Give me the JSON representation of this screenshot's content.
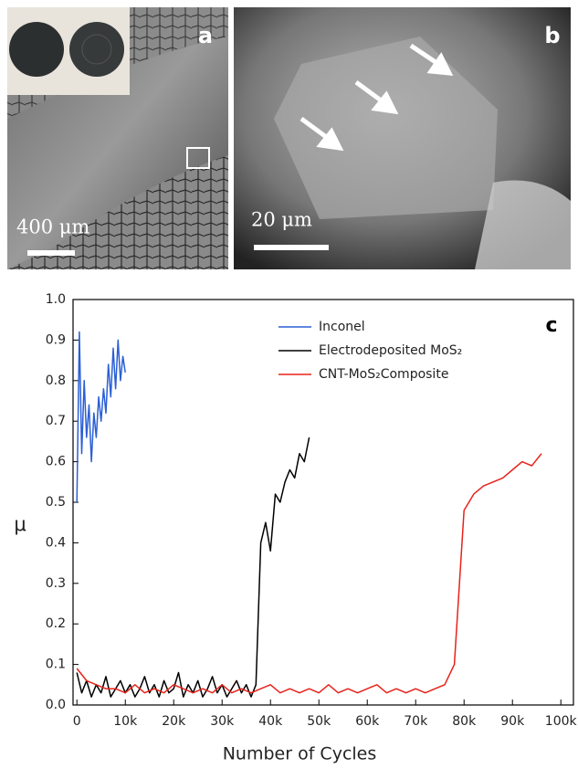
{
  "panels": [
    {
      "label": "a",
      "scale_bar": "400 μm"
    },
    {
      "label": "b",
      "scale_bar": "20 μm"
    }
  ],
  "chart_data": {
    "type": "line",
    "annotation": "c",
    "x_label": "Number of Cycles",
    "y_label": "μ",
    "xlim": [
      -800,
      102600
    ],
    "ylim": [
      0,
      1
    ],
    "xticks": [
      0,
      {
        "value": 10000,
        "label": "10k"
      },
      {
        "value": 20000,
        "label": "20k"
      },
      {
        "value": 30000,
        "label": "30k"
      },
      {
        "value": 40000,
        "label": "40k"
      },
      {
        "value": 50000,
        "label": "50k"
      },
      {
        "value": 60000,
        "label": "60k"
      },
      {
        "value": 70000,
        "label": "70k"
      },
      {
        "value": 80000,
        "label": "80k"
      },
      {
        "value": 90000,
        "label": "90k"
      },
      {
        "value": 100000,
        "label": "100k"
      }
    ],
    "yticks": [
      {
        "value": 0,
        "label": "0.0"
      },
      0.1,
      0.2,
      0.3,
      0.4,
      0.5,
      0.6,
      0.7,
      0.8,
      0.9,
      {
        "value": 1,
        "label": "1.0"
      }
    ],
    "legend": "upper right",
    "series": [
      {
        "name": "Inconel",
        "color": "#2b5fd4",
        "x": [
          0,
          500,
          1000,
          1500,
          2000,
          2500,
          3000,
          3500,
          4000,
          4500,
          5000,
          5500,
          6000,
          6500,
          7000,
          7500,
          8000,
          8500,
          9000,
          9500,
          10000
        ],
        "values": [
          0.5,
          0.92,
          0.62,
          0.8,
          0.66,
          0.74,
          0.6,
          0.72,
          0.66,
          0.76,
          0.7,
          0.78,
          0.72,
          0.84,
          0.76,
          0.88,
          0.78,
          0.9,
          0.8,
          0.86,
          0.82
        ]
      },
      {
        "name": "Electrodeposited MoS₂",
        "color": "#000000",
        "x": [
          0,
          1000,
          2000,
          3000,
          4000,
          5000,
          6000,
          7000,
          8000,
          9000,
          10000,
          11000,
          12000,
          13000,
          14000,
          15000,
          16000,
          17000,
          18000,
          19000,
          20000,
          21000,
          22000,
          23000,
          24000,
          25000,
          26000,
          27000,
          28000,
          29000,
          30000,
          31000,
          32000,
          33000,
          34000,
          35000,
          36000,
          37000,
          38000,
          39000,
          40000,
          41000,
          42000,
          43000,
          44000,
          45000,
          46000,
          47000,
          48000
        ],
        "values": [
          0.08,
          0.03,
          0.06,
          0.02,
          0.05,
          0.03,
          0.07,
          0.02,
          0.04,
          0.06,
          0.03,
          0.05,
          0.02,
          0.04,
          0.07,
          0.03,
          0.05,
          0.02,
          0.06,
          0.03,
          0.04,
          0.08,
          0.02,
          0.05,
          0.03,
          0.06,
          0.02,
          0.04,
          0.07,
          0.03,
          0.05,
          0.02,
          0.04,
          0.06,
          0.03,
          0.05,
          0.02,
          0.05,
          0.4,
          0.45,
          0.38,
          0.52,
          0.5,
          0.55,
          0.58,
          0.56,
          0.62,
          0.6,
          0.66
        ]
      },
      {
        "name": "CNT-MoS₂Composite",
        "color": "#e8221a",
        "x": [
          0,
          2000,
          4000,
          6000,
          8000,
          10000,
          12000,
          14000,
          16000,
          18000,
          20000,
          22000,
          24000,
          26000,
          28000,
          30000,
          32000,
          34000,
          36000,
          38000,
          40000,
          42000,
          44000,
          46000,
          48000,
          50000,
          52000,
          54000,
          56000,
          58000,
          60000,
          62000,
          64000,
          66000,
          68000,
          70000,
          72000,
          74000,
          76000,
          78000,
          80000,
          82000,
          84000,
          86000,
          88000,
          90000,
          92000,
          94000,
          96000
        ],
        "values": [
          0.09,
          0.06,
          0.05,
          0.04,
          0.04,
          0.03,
          0.05,
          0.03,
          0.04,
          0.03,
          0.05,
          0.04,
          0.03,
          0.04,
          0.03,
          0.05,
          0.03,
          0.04,
          0.03,
          0.04,
          0.05,
          0.03,
          0.04,
          0.03,
          0.04,
          0.03,
          0.05,
          0.03,
          0.04,
          0.03,
          0.04,
          0.05,
          0.03,
          0.04,
          0.03,
          0.04,
          0.03,
          0.04,
          0.05,
          0.1,
          0.48,
          0.52,
          0.54,
          0.55,
          0.56,
          0.58,
          0.6,
          0.59,
          0.62
        ]
      }
    ]
  }
}
